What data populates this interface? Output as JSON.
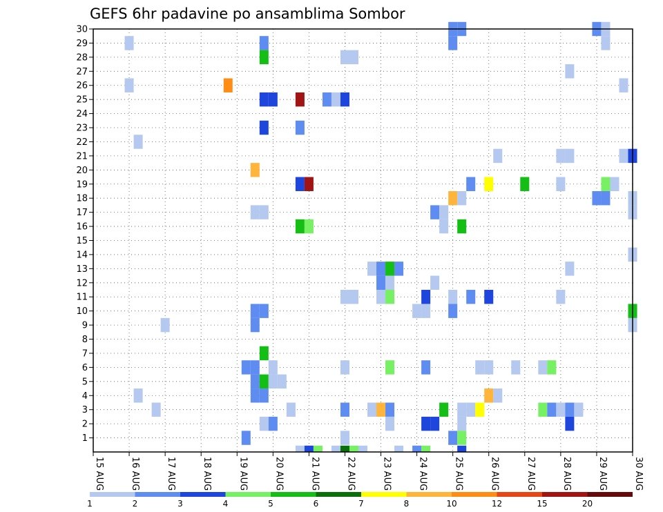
{
  "chart_data": {
    "type": "heatmap",
    "title": "GEFS 6hr padavine po ansamblima Sombor",
    "xlabel": "",
    "ylabel": "",
    "x_tick_labels": [
      "15 AUG",
      "16 AUG",
      "17 AUG",
      "18 AUG",
      "19 AUG",
      "20 AUG",
      "21 AUG",
      "22 AUG",
      "23 AUG",
      "24 AUG",
      "25 AUG",
      "26 AUG",
      "27 AUG",
      "28 AUG",
      "29 AUG",
      "30 AUG"
    ],
    "x_range_days": [
      15,
      30
    ],
    "y_tick_labels": [
      "1",
      "2",
      "3",
      "4",
      "5",
      "6",
      "7",
      "8",
      "9",
      "10",
      "11",
      "12",
      "13",
      "14",
      "15",
      "16",
      "17",
      "18",
      "19",
      "20",
      "21",
      "22",
      "23",
      "24",
      "25",
      "26",
      "27",
      "28",
      "29",
      "30"
    ],
    "y_range": [
      0,
      30
    ],
    "grid": true,
    "colorbar": {
      "labels": [
        "1",
        "2",
        "3",
        "4",
        "5",
        "6",
        "7",
        "8",
        "10",
        "12",
        "15",
        "20"
      ],
      "colors": [
        "#b4c8f0",
        "#5f8cf0",
        "#1e46dc",
        "#78f064",
        "#14be14",
        "#0a6e0a",
        "#ffff00",
        "#ffb43c",
        "#ff8c14",
        "#e64614",
        "#a01414",
        "#640a0a"
      ]
    },
    "cells_note": "each cell: [day (fractional, 0.25 = one 6h step), ensemble member, color class index 0..11]",
    "cells": [
      [
        16.0,
        29,
        0
      ],
      [
        16.0,
        26,
        0
      ],
      [
        16.25,
        22,
        0
      ],
      [
        16.25,
        4,
        0
      ],
      [
        16.75,
        3,
        0
      ],
      [
        17.0,
        9,
        0
      ],
      [
        18.75,
        26,
        8
      ],
      [
        19.25,
        6,
        1
      ],
      [
        19.25,
        1,
        1
      ],
      [
        19.5,
        6,
        1
      ],
      [
        19.5,
        5,
        1
      ],
      [
        19.5,
        4,
        1
      ],
      [
        19.5,
        10,
        1
      ],
      [
        19.5,
        9,
        1
      ],
      [
        19.75,
        5,
        4
      ],
      [
        19.5,
        20,
        7
      ],
      [
        19.5,
        17,
        0
      ],
      [
        19.75,
        29,
        1
      ],
      [
        19.75,
        28,
        4
      ],
      [
        19.75,
        25,
        2
      ],
      [
        19.75,
        23,
        2
      ],
      [
        19.75,
        17,
        0
      ],
      [
        19.75,
        10,
        1
      ],
      [
        19.75,
        7,
        4
      ],
      [
        19.75,
        4,
        1
      ],
      [
        19.75,
        2,
        0
      ],
      [
        20.0,
        25,
        2
      ],
      [
        20.0,
        6,
        0
      ],
      [
        20.0,
        5,
        0
      ],
      [
        20.0,
        2,
        1
      ],
      [
        20.25,
        5,
        0
      ],
      [
        20.5,
        3,
        0
      ],
      [
        20.75,
        25,
        10
      ],
      [
        20.75,
        23,
        1
      ],
      [
        20.75,
        19,
        2
      ],
      [
        20.75,
        16,
        4
      ],
      [
        20.75,
        0,
        0
      ],
      [
        21.0,
        19,
        10
      ],
      [
        21.0,
        16,
        3
      ],
      [
        21.0,
        0,
        2
      ],
      [
        21.25,
        0,
        3
      ],
      [
        21.5,
        25,
        1
      ],
      [
        21.75,
        25,
        0
      ],
      [
        21.75,
        0,
        0
      ],
      [
        22.0,
        25,
        2
      ],
      [
        22.0,
        0,
        5
      ],
      [
        22.25,
        0,
        3
      ],
      [
        22.5,
        0,
        0
      ],
      [
        22.0,
        28,
        0
      ],
      [
        22.25,
        28,
        0
      ],
      [
        22.0,
        11,
        0
      ],
      [
        22.25,
        11,
        0
      ],
      [
        22.0,
        6,
        0
      ],
      [
        22.0,
        3,
        1
      ],
      [
        22.0,
        1,
        0
      ],
      [
        22.75,
        13,
        0
      ],
      [
        22.75,
        3,
        0
      ],
      [
        23.0,
        13,
        1
      ],
      [
        23.0,
        12,
        1
      ],
      [
        23.0,
        11,
        0
      ],
      [
        23.0,
        3,
        7
      ],
      [
        23.25,
        13,
        4
      ],
      [
        23.25,
        12,
        0
      ],
      [
        23.25,
        11,
        3
      ],
      [
        23.25,
        6,
        3
      ],
      [
        23.25,
        3,
        1
      ],
      [
        23.25,
        2,
        0
      ],
      [
        23.5,
        13,
        1
      ],
      [
        23.5,
        0,
        0
      ],
      [
        24.0,
        10,
        0
      ],
      [
        24.25,
        10,
        0
      ],
      [
        24.25,
        11,
        2
      ],
      [
        24.25,
        6,
        1
      ],
      [
        24.25,
        2,
        2
      ],
      [
        24.5,
        2,
        2
      ],
      [
        24.5,
        12,
        0
      ],
      [
        24.0,
        0,
        1
      ],
      [
        24.25,
        0,
        3
      ],
      [
        24.5,
        17,
        1
      ],
      [
        24.75,
        17,
        0
      ],
      [
        24.75,
        16,
        0
      ],
      [
        24.75,
        3,
        4
      ],
      [
        25.0,
        18,
        7
      ],
      [
        25.0,
        30,
        1
      ],
      [
        25.0,
        29,
        1
      ],
      [
        25.0,
        11,
        0
      ],
      [
        25.0,
        10,
        1
      ],
      [
        25.0,
        1,
        1
      ],
      [
        25.25,
        30,
        1
      ],
      [
        25.25,
        18,
        0
      ],
      [
        25.25,
        16,
        4
      ],
      [
        25.25,
        3,
        0
      ],
      [
        25.25,
        2,
        0
      ],
      [
        25.25,
        1,
        3
      ],
      [
        25.25,
        0,
        2
      ],
      [
        25.5,
        19,
        1
      ],
      [
        25.5,
        11,
        1
      ],
      [
        25.5,
        3,
        0
      ],
      [
        25.75,
        3,
        6
      ],
      [
        25.75,
        6,
        0
      ],
      [
        26.0,
        6,
        0
      ],
      [
        26.0,
        19,
        6
      ],
      [
        26.0,
        11,
        2
      ],
      [
        26.0,
        4,
        7
      ],
      [
        26.25,
        4,
        0
      ],
      [
        26.25,
        21,
        0
      ],
      [
        26.75,
        6,
        0
      ],
      [
        27.0,
        19,
        4
      ],
      [
        27.5,
        3,
        3
      ],
      [
        27.5,
        6,
        0
      ],
      [
        27.75,
        6,
        3
      ],
      [
        27.75,
        3,
        1
      ],
      [
        28.0,
        3,
        0
      ],
      [
        28.0,
        19,
        0
      ],
      [
        28.0,
        21,
        0
      ],
      [
        28.0,
        11,
        0
      ],
      [
        28.25,
        27,
        0
      ],
      [
        28.25,
        21,
        0
      ],
      [
        28.25,
        13,
        0
      ],
      [
        28.25,
        3,
        1
      ],
      [
        28.25,
        2,
        2
      ],
      [
        28.5,
        3,
        0
      ],
      [
        29.0,
        30,
        1
      ],
      [
        29.25,
        30,
        0
      ],
      [
        29.25,
        29,
        0
      ],
      [
        29.0,
        18,
        1
      ],
      [
        29.25,
        18,
        1
      ],
      [
        29.25,
        19,
        3
      ],
      [
        29.5,
        19,
        0
      ],
      [
        29.75,
        26,
        0
      ],
      [
        29.75,
        21,
        0
      ],
      [
        30.0,
        21,
        2
      ],
      [
        30.0,
        18,
        0
      ],
      [
        30.0,
        17,
        0
      ],
      [
        30.0,
        14,
        0
      ],
      [
        30.0,
        10,
        4
      ],
      [
        30.0,
        9,
        0
      ]
    ]
  }
}
